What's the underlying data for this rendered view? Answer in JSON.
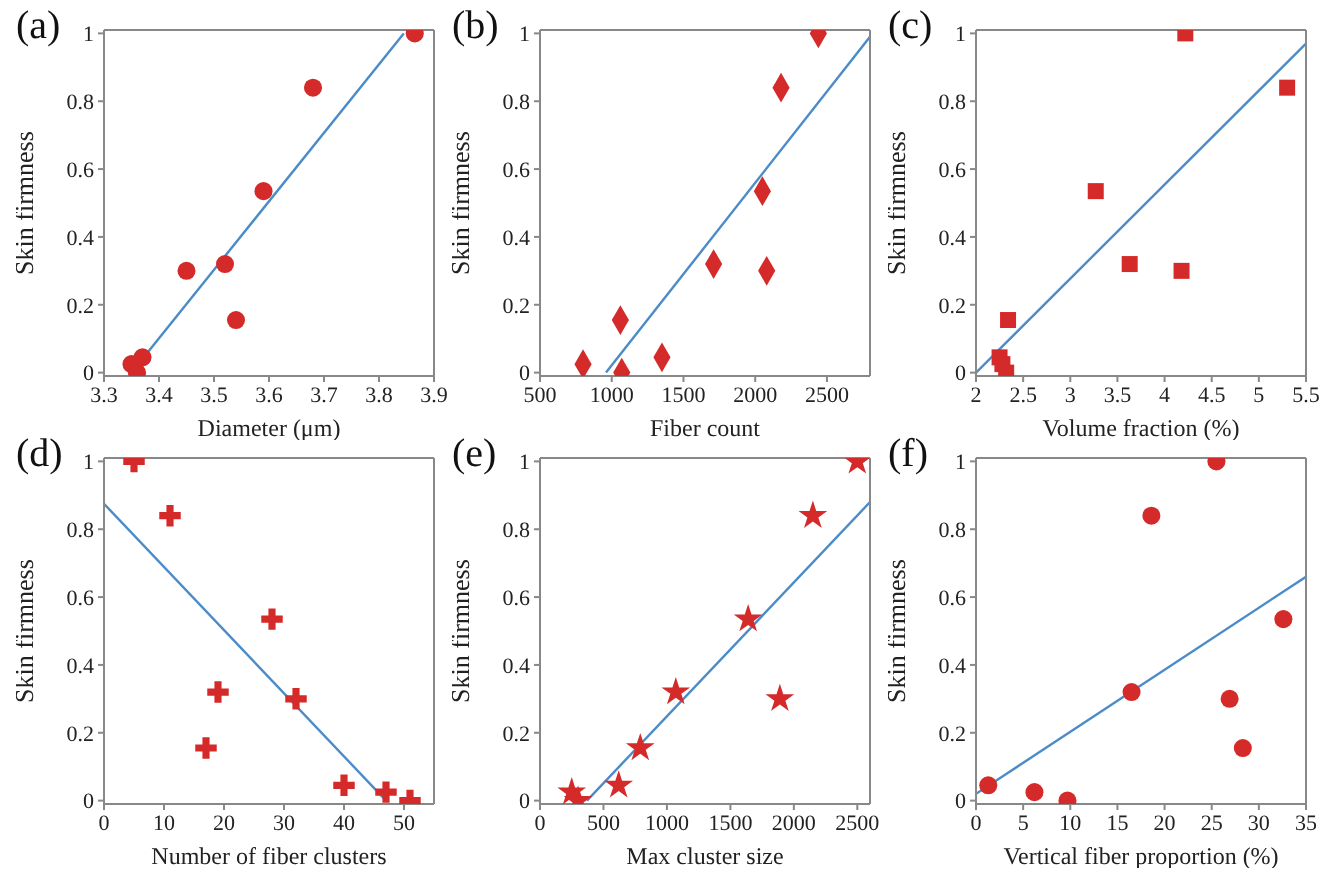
{
  "chart_data": [
    {
      "type": "scatter",
      "title": "(a)",
      "xlabel": "Diameter (μm)",
      "ylabel": "Skin firmness",
      "xlim": [
        3.3,
        3.9
      ],
      "xticks": [
        3.3,
        3.4,
        3.5,
        3.6,
        3.7,
        3.8,
        3.9
      ],
      "ylim": [
        -0.01,
        1.01
      ],
      "yticks": [
        0,
        0.2,
        0.4,
        0.6,
        0.8,
        1
      ],
      "series": [
        {
          "marker": "circle",
          "color": "#d42a2a",
          "x": [
            3.35,
            3.36,
            3.37,
            3.45,
            3.52,
            3.54,
            3.59,
            3.68,
            3.865
          ],
          "values": [
            0.025,
            0,
            0.045,
            0.3,
            0.32,
            0.155,
            0.535,
            0.84,
            1
          ]
        },
        {
          "type": "line",
          "color": "#4a8bc8",
          "x": [
            3.35,
            3.845
          ],
          "values": [
            0,
            1
          ]
        }
      ]
    },
    {
      "type": "scatter",
      "title": "(b)",
      "xlabel": "Fiber count",
      "ylabel": "Skin firmness",
      "xlim": [
        500,
        2800
      ],
      "xticks": [
        500,
        1000,
        1500,
        2000,
        2500
      ],
      "ylim": [
        -0.01,
        1.01
      ],
      "yticks": [
        0,
        0.2,
        0.4,
        0.6,
        0.8,
        1
      ],
      "series": [
        {
          "marker": "diamond",
          "color": "#d42a2a",
          "x": [
            800,
            1060,
            1070,
            1350,
            1710,
            2050,
            2080,
            2180,
            2440
          ],
          "values": [
            0.025,
            0.155,
            0,
            0.045,
            0.32,
            0.535,
            0.3,
            0.84,
            1
          ]
        },
        {
          "type": "line",
          "color": "#4a8bc8",
          "x": [
            960,
            2800
          ],
          "values": [
            0,
            0.99
          ]
        }
      ]
    },
    {
      "type": "scatter",
      "title": "(c)",
      "xlabel": "Volume fraction (%)",
      "ylabel": "Skin firmness",
      "xlim": [
        2,
        5.5
      ],
      "xticks": [
        2,
        2.5,
        3,
        3.5,
        4,
        4.5,
        5,
        5.5
      ],
      "ylim": [
        -0.01,
        1.01
      ],
      "yticks": [
        0,
        0.2,
        0.4,
        0.6,
        0.8,
        1
      ],
      "series": [
        {
          "marker": "square",
          "color": "#d42a2a",
          "x": [
            2.25,
            2.28,
            2.32,
            2.34,
            3.27,
            3.63,
            4.18,
            4.22,
            5.3
          ],
          "values": [
            0.045,
            0.025,
            0,
            0.155,
            0.535,
            0.32,
            0.3,
            1,
            0.84
          ]
        },
        {
          "type": "line",
          "color": "#4a8bc8",
          "x": [
            2,
            5.5
          ],
          "values": [
            0,
            0.97
          ]
        }
      ]
    },
    {
      "type": "scatter",
      "title": "(d)",
      "xlabel": "Number of fiber clusters",
      "ylabel": "Skin firmness",
      "xlim": [
        0,
        55
      ],
      "xticks": [
        0,
        10,
        20,
        30,
        40,
        50
      ],
      "ylim": [
        -0.01,
        1.01
      ],
      "yticks": [
        0,
        0.2,
        0.4,
        0.6,
        0.8,
        1
      ],
      "series": [
        {
          "marker": "cross",
          "color": "#d42a2a",
          "x": [
            5,
            11,
            17,
            19,
            28,
            32,
            40,
            47,
            51
          ],
          "values": [
            1,
            0.84,
            0.155,
            0.32,
            0.535,
            0.3,
            0.045,
            0.025,
            0
          ]
        },
        {
          "type": "line",
          "color": "#4a8bc8",
          "x": [
            0,
            47
          ],
          "values": [
            0.875,
            0
          ]
        }
      ]
    },
    {
      "type": "scatter",
      "title": "(e)",
      "xlabel": "Max cluster size",
      "ylabel": "Skin firmness",
      "xlim": [
        0,
        2600
      ],
      "xticks": [
        0,
        500,
        1000,
        1500,
        2000,
        2500
      ],
      "ylim": [
        -0.01,
        1.01
      ],
      "yticks": [
        0,
        0.2,
        0.4,
        0.6,
        0.8,
        1
      ],
      "series": [
        {
          "marker": "star",
          "color": "#d42a2a",
          "x": [
            250,
            300,
            620,
            790,
            1070,
            1640,
            1890,
            2150,
            2500
          ],
          "values": [
            0.025,
            0,
            0.045,
            0.155,
            0.32,
            0.535,
            0.3,
            0.84,
            1
          ]
        },
        {
          "type": "line",
          "color": "#4a8bc8",
          "x": [
            370,
            2600
          ],
          "values": [
            0,
            0.88
          ]
        }
      ]
    },
    {
      "type": "scatter",
      "title": "(f)",
      "xlabel": "Vertical fiber proportion (%)",
      "ylabel": "Skin firmness",
      "xlim": [
        0,
        35
      ],
      "xticks": [
        0,
        5,
        10,
        15,
        20,
        25,
        30,
        35
      ],
      "ylim": [
        -0.01,
        1.01
      ],
      "yticks": [
        0,
        0.2,
        0.4,
        0.6,
        0.8,
        1
      ],
      "series": [
        {
          "marker": "circle",
          "color": "#d42a2a",
          "x": [
            1.3,
            6.2,
            9.7,
            16.5,
            18.6,
            25.5,
            26.9,
            28.3,
            32.6
          ],
          "values": [
            0.045,
            0.025,
            0,
            0.32,
            0.84,
            1,
            0.3,
            0.155,
            0.535
          ]
        },
        {
          "type": "line",
          "color": "#4a8bc8",
          "x": [
            0,
            35
          ],
          "values": [
            0.02,
            0.66
          ]
        }
      ]
    }
  ]
}
